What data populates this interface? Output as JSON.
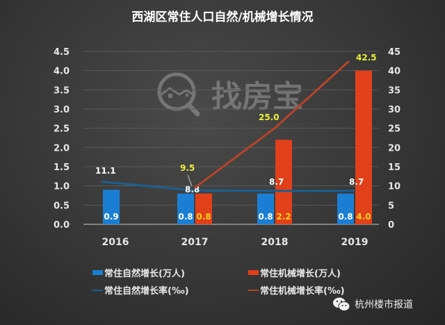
{
  "title": "西湖区常住人口自然/机械增长情况",
  "watermark": {
    "text": "找房宝",
    "icon": "house-search-icon"
  },
  "brand": {
    "text": "杭州楼市报道",
    "icon": "wechat-icon"
  },
  "colors": {
    "natural_bar": "#1a7fd4",
    "mechanical_bar": "#e1401a",
    "natural_line": "#1d5f8f",
    "mechanical_line": "#b5442a",
    "label_white": "#ffffff",
    "label_yellow": "#ffd21f",
    "label_yellowgreen": "#e8f03a"
  },
  "chart_data": {
    "type": "bar+line",
    "title": "西湖区常住人口自然/机械增长情况",
    "categories": [
      "2016",
      "2017",
      "2018",
      "2019"
    ],
    "left_axis": {
      "ylim": [
        0,
        4.5
      ],
      "ticks": [
        "0.0",
        "0.5",
        "1.0",
        "1.5",
        "2.0",
        "2.5",
        "3.0",
        "3.5",
        "4.0",
        "4.5"
      ]
    },
    "right_axis": {
      "ylim": [
        0,
        45
      ],
      "ticks": [
        "0",
        "5",
        "10",
        "15",
        "20",
        "25",
        "30",
        "35",
        "40",
        "45"
      ]
    },
    "series": [
      {
        "name": "常住自然增长(万人)",
        "type": "bar",
        "axis": "left",
        "values": [
          0.9,
          0.8,
          0.8,
          0.8
        ],
        "labels": [
          "0.9",
          "0.8",
          "0.8",
          "0.8"
        ]
      },
      {
        "name": "常住机械增长(万人)",
        "type": "bar",
        "axis": "left",
        "values": [
          null,
          0.8,
          2.2,
          4.0
        ],
        "labels": [
          "",
          "0.8",
          "2.2",
          "4.0"
        ]
      },
      {
        "name": "常住自然增长率(‰)",
        "type": "line",
        "axis": "right",
        "values": [
          11.1,
          8.8,
          8.7,
          8.7
        ],
        "labels": [
          "11.1",
          "8.8",
          "8.7",
          "8.7"
        ]
      },
      {
        "name": "常住机械增长率(‰)",
        "type": "line",
        "axis": "right",
        "values": [
          null,
          9.5,
          25.0,
          42.5
        ],
        "labels": [
          "",
          "9.5",
          "25.0",
          "42.5"
        ]
      }
    ],
    "grid": true,
    "legend_position": "bottom"
  },
  "legend": [
    {
      "label": "常住自然增长(万人)",
      "kind": "bar",
      "color": "#1a7fd4"
    },
    {
      "label": "常住机械增长(万人)",
      "kind": "bar",
      "color": "#e1401a"
    },
    {
      "label": "常住自然增长率(‰)",
      "kind": "line",
      "color": "#1d5f8f"
    },
    {
      "label": "常住机械增长率(‰)",
      "kind": "line",
      "color": "#b5442a"
    }
  ]
}
